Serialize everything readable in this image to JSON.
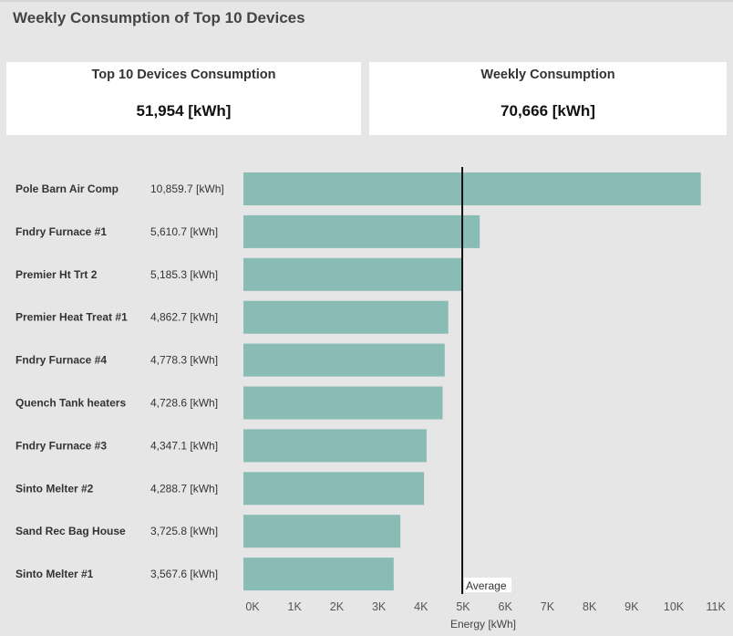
{
  "page": {
    "title": "Weekly Consumption of Top 10 Devices"
  },
  "kpis": [
    {
      "label": "Top 10 Devices Consumption",
      "value": "51,954 [kWh]"
    },
    {
      "label": "Weekly Consumption",
      "value": "70,666 [kWh]"
    }
  ],
  "colors": {
    "bar": "#88bcb5",
    "average_line": "#111111"
  },
  "chart_data": {
    "type": "bar",
    "orientation": "horizontal",
    "categories": [
      "Pole Barn Air Comp",
      "Fndry Furnace #1",
      "Premier Ht Trt 2",
      "Premier Heat Treat #1",
      "Fndry Furnace #4",
      "Quench Tank heaters",
      "Fndry Furnace #3",
      "Sinto Melter #2",
      "Sand Rec Bag House",
      "Sinto Melter #1"
    ],
    "values": [
      10859.7,
      5610.7,
      5185.3,
      4862.7,
      4778.3,
      4728.6,
      4347.1,
      4288.7,
      3725.8,
      3567.6
    ],
    "value_labels": [
      "10,859.7 [kWh]",
      "5,610.7 [kWh]",
      "5,185.3 [kWh]",
      "4,862.7 [kWh]",
      "4,778.3 [kWh]",
      "4,728.6 [kWh]",
      "4,347.1 [kWh]",
      "4,288.7 [kWh]",
      "3,725.8 [kWh]",
      "3,567.6 [kWh]"
    ],
    "xlabel": "Energy [kWh]",
    "xlim": [
      0,
      11000
    ],
    "xticks": [
      0,
      1000,
      2000,
      3000,
      4000,
      5000,
      6000,
      7000,
      8000,
      9000,
      10000,
      11000
    ],
    "xtick_labels": [
      "0K",
      "1K",
      "2K",
      "3K",
      "4K",
      "5K",
      "6K",
      "7K",
      "8K",
      "9K",
      "10K",
      "11K"
    ],
    "reference_line": {
      "label": "Average",
      "value": 5195.4
    },
    "grid": false
  }
}
